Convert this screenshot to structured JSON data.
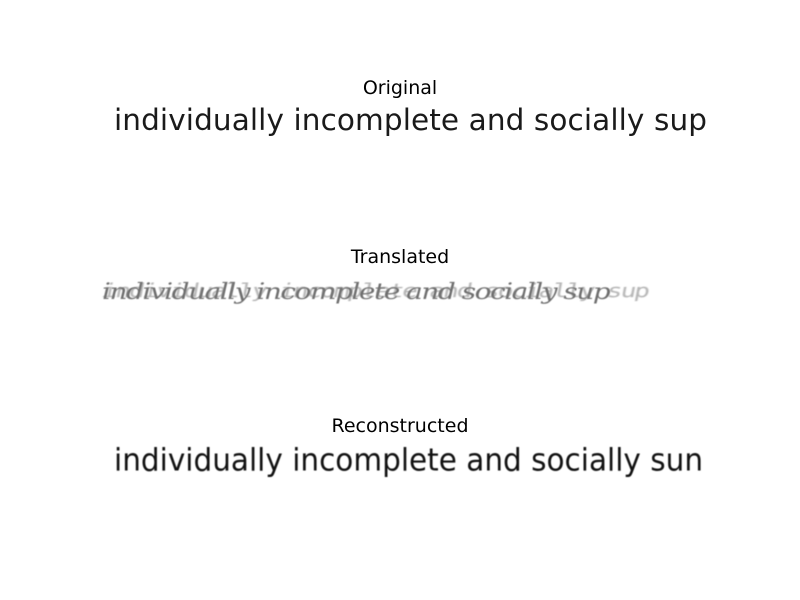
{
  "panels": [
    {
      "title": "Original",
      "text": "individually incomplete and socially sup"
    },
    {
      "title": "Translated",
      "text": "individually incomplete and socially sup"
    },
    {
      "title": "Reconstructed",
      "text": "individually incomplete and socially sun"
    }
  ]
}
